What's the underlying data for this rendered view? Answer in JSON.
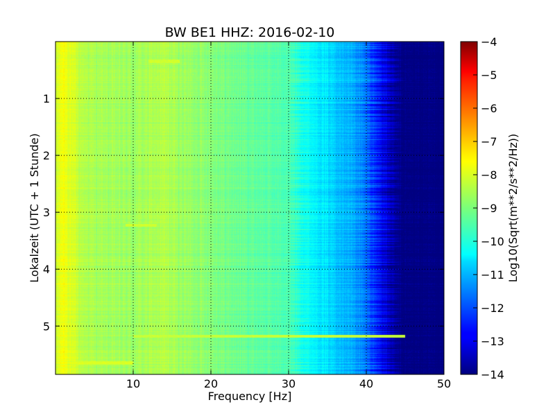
{
  "chart_data": {
    "type": "heatmap",
    "title": "BW BE1 HHZ: 2016-02-10",
    "xlabel": "Frequency [Hz]",
    "ylabel": "Lokalzeit (UTC + 1 Stunde)",
    "colorbar_label": "Log10(Sqrt(m**2/s**2/Hz))",
    "colormap": "jet",
    "xlim": [
      0,
      50
    ],
    "ylim": [
      0,
      5.85
    ],
    "y_inverted": true,
    "x_ticks": [
      10,
      20,
      30,
      40,
      50
    ],
    "x_tick_labels": [
      "10",
      "20",
      "30",
      "40",
      "50"
    ],
    "y_ticks": [
      1,
      2,
      3,
      4,
      5
    ],
    "y_tick_labels": [
      "1",
      "2",
      "3",
      "4",
      "5"
    ],
    "clim": [
      -14,
      -4
    ],
    "colorbar_ticks": [
      -4,
      -5,
      -6,
      -7,
      -8,
      -9,
      -10,
      -11,
      -12,
      -13,
      -14
    ],
    "colorbar_tick_labels": [
      "−4",
      "−5",
      "−6",
      "−7",
      "−8",
      "−9",
      "−10",
      "−11",
      "−12",
      "−13",
      "−14"
    ],
    "grid": true,
    "grid_style": "dotted",
    "spectrum_profile": {
      "frequency_hz": [
        0,
        1,
        2,
        3,
        5,
        8,
        10,
        12,
        14,
        16,
        18,
        20,
        22,
        24,
        26,
        28,
        30,
        31,
        32,
        34,
        36,
        38,
        40,
        41,
        42,
        43,
        44,
        50
      ],
      "log10_amplitude": [
        -8.3,
        -7.8,
        -8.1,
        -8.4,
        -8.6,
        -8.7,
        -8.7,
        -8.6,
        -8.5,
        -8.7,
        -8.8,
        -8.9,
        -9.1,
        -9.2,
        -9.3,
        -9.4,
        -9.5,
        -9.7,
        -10.1,
        -10.4,
        -10.7,
        -11.0,
        -11.6,
        -12.2,
        -12.8,
        -13.4,
        -14.0,
        -14.0
      ]
    },
    "notable_bands": [
      {
        "time_h": 3.23,
        "freq_range_hz": [
          9,
          13
        ],
        "log10_amplitude": -8.2
      },
      {
        "time_h": 5.18,
        "freq_range_hz": [
          10,
          45
        ],
        "log10_amplitude": -8.3
      },
      {
        "time_h": 0.35,
        "freq_range_hz": [
          12,
          16
        ],
        "log10_amplitude": -8.2
      },
      {
        "time_h": 5.65,
        "freq_range_hz": [
          2,
          10
        ],
        "log10_amplitude": -8.1
      }
    ]
  }
}
